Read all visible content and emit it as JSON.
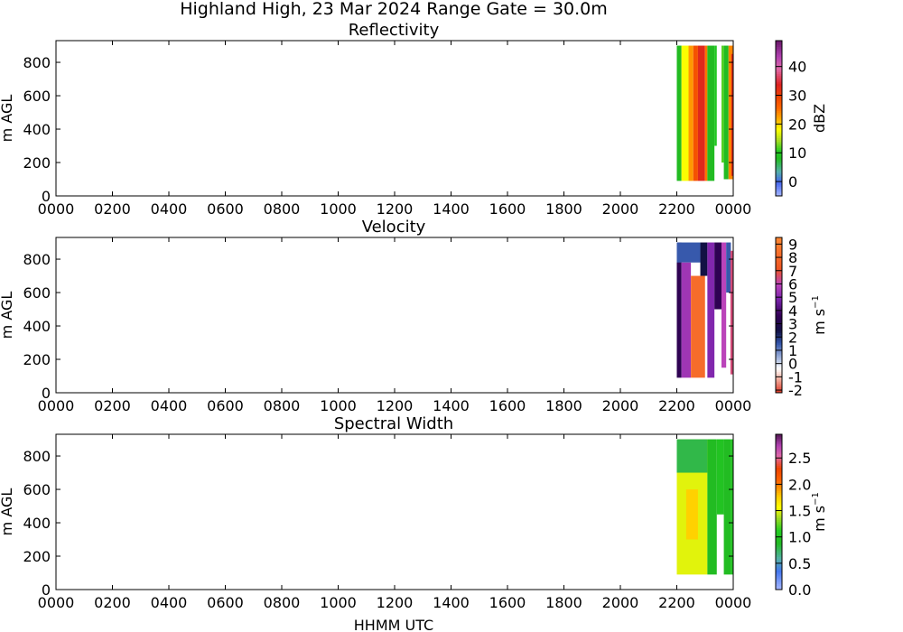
{
  "figure": {
    "title": "Highland High, 23 Mar 2024 Range Gate = 30.0m",
    "xlabel": "HHMM UTC"
  },
  "chart_data": [
    {
      "type": "heatmap",
      "title": "Reflectivity",
      "ylabel": "m AGL",
      "xlim": [
        "0000",
        "0000"
      ],
      "x_ticks": [
        "0000",
        "0200",
        "0400",
        "0600",
        "0800",
        "1000",
        "1200",
        "1400",
        "1600",
        "1800",
        "2000",
        "2200",
        "0000"
      ],
      "ylim": [
        0,
        930
      ],
      "y_ticks": [
        0,
        200,
        400,
        600,
        800
      ],
      "colorbar": {
        "label": "dBZ",
        "range": [
          -5,
          49
        ],
        "ticks": [
          "0",
          "10",
          "20",
          "30",
          "40"
        ],
        "tick_values": [
          0,
          10,
          20,
          30,
          40
        ]
      },
      "data_extent": {
        "x_start": "2200",
        "x_end": "2359",
        "height_min": 90,
        "height_max": 900
      },
      "bands": [
        {
          "x": [
            "2200",
            "2210"
          ],
          "h": [
            90,
            900
          ],
          "value": 8
        },
        {
          "x": [
            "2210",
            "2225"
          ],
          "h": [
            90,
            900
          ],
          "value": 18
        },
        {
          "x": [
            "2225",
            "2235"
          ],
          "h": [
            90,
            900
          ],
          "value": 23
        },
        {
          "x": [
            "2235",
            "2245"
          ],
          "h": [
            90,
            900
          ],
          "value": 28
        },
        {
          "x": [
            "2245",
            "2300"
          ],
          "h": [
            90,
            900
          ],
          "value": 33
        },
        {
          "x": [
            "2300",
            "2305"
          ],
          "h": [
            90,
            900
          ],
          "value": 25
        },
        {
          "x": [
            "2305",
            "2320"
          ],
          "h": [
            90,
            900
          ],
          "value": 8
        },
        {
          "x": [
            "2320",
            "2325"
          ],
          "h": [
            300,
            900
          ],
          "value": 10
        },
        {
          "x": [
            "2335",
            "2340"
          ],
          "h": [
            200,
            900
          ],
          "value": 12
        },
        {
          "x": [
            "2340",
            "2350"
          ],
          "h": [
            100,
            900
          ],
          "value": 8
        },
        {
          "x": [
            "2350",
            "2359"
          ],
          "h": [
            100,
            900
          ],
          "value": 24
        },
        {
          "x": [
            "2356",
            "2359"
          ],
          "h": [
            120,
            850
          ],
          "value": 33
        }
      ]
    },
    {
      "type": "heatmap",
      "title": "Velocity",
      "ylabel": "m AGL",
      "xlim": [
        "0000",
        "0000"
      ],
      "x_ticks": [
        "0000",
        "0200",
        "0400",
        "0600",
        "0800",
        "1000",
        "1200",
        "1400",
        "1600",
        "1800",
        "2000",
        "2200",
        "0000"
      ],
      "ylim": [
        0,
        930
      ],
      "y_ticks": [
        0,
        200,
        400,
        600,
        800
      ],
      "colorbar": {
        "label": "m s$^{-1}$",
        "label_main": "m s",
        "label_exp": "−1",
        "range": [
          -2.2,
          9.5
        ],
        "ticks": [
          "-2",
          "-1",
          "0",
          "1",
          "2",
          "3",
          "4",
          "5",
          "6",
          "7",
          "8",
          "9"
        ],
        "tick_values": [
          -2,
          -1,
          0,
          1,
          2,
          3,
          4,
          5,
          6,
          7,
          8,
          9
        ]
      },
      "data_extent": {
        "x_start": "2200",
        "x_end": "2359",
        "height_min": 90,
        "height_max": 900
      },
      "bands": [
        {
          "x": [
            "2200",
            "2210"
          ],
          "h": [
            90,
            900
          ],
          "value": 3.5
        },
        {
          "x": [
            "2200",
            "2250"
          ],
          "h": [
            780,
            900
          ],
          "value": 1.5
        },
        {
          "x": [
            "2210",
            "2230"
          ],
          "h": [
            90,
            780
          ],
          "value": 5.5
        },
        {
          "x": [
            "2230",
            "2300"
          ],
          "h": [
            90,
            700
          ],
          "value": 8.2
        },
        {
          "x": [
            "2250",
            "2305"
          ],
          "h": [
            700,
            900
          ],
          "value": 2.5
        },
        {
          "x": [
            "2305",
            "2320"
          ],
          "h": [
            90,
            900
          ],
          "value": 5.0
        },
        {
          "x": [
            "2320",
            "2335"
          ],
          "h": [
            500,
            900
          ],
          "value": 3.5
        },
        {
          "x": [
            "2335",
            "2345"
          ],
          "h": [
            150,
            900
          ],
          "value": 6.0
        },
        {
          "x": [
            "2345",
            "2355"
          ],
          "h": [
            600,
            900
          ],
          "value": 1.5
        },
        {
          "x": [
            "2354",
            "2359"
          ],
          "h": [
            110,
            850
          ],
          "value": 6.5
        }
      ]
    },
    {
      "type": "heatmap",
      "title": "Spectral Width",
      "ylabel": "m AGL",
      "xlim": [
        "0000",
        "0000"
      ],
      "x_ticks": [
        "0000",
        "0200",
        "0400",
        "0600",
        "0800",
        "1000",
        "1200",
        "1400",
        "1600",
        "1800",
        "2000",
        "2200",
        "0000"
      ],
      "ylim": [
        0,
        930
      ],
      "y_ticks": [
        0,
        200,
        400,
        600,
        800
      ],
      "colorbar": {
        "label": "m s$^{-1}$",
        "label_main": "m s",
        "label_exp": "−1",
        "range": [
          0,
          2.95
        ],
        "ticks": [
          "0.0",
          "0.5",
          "1.0",
          "1.5",
          "2.0",
          "2.5"
        ],
        "tick_values": [
          0,
          0.5,
          1.0,
          1.5,
          2.0,
          2.5
        ]
      },
      "data_extent": {
        "x_start": "2200",
        "x_end": "2359",
        "height_min": 90,
        "height_max": 900
      },
      "bands": [
        {
          "x": [
            "2200",
            "2305"
          ],
          "h": [
            90,
            900
          ],
          "value": 1.5
        },
        {
          "x": [
            "2200",
            "2305"
          ],
          "h": [
            700,
            900
          ],
          "value": 0.8
        },
        {
          "x": [
            "2220",
            "2245"
          ],
          "h": [
            300,
            600
          ],
          "value": 1.75
        },
        {
          "x": [
            "2305",
            "2325"
          ],
          "h": [
            90,
            900
          ],
          "value": 0.9
        },
        {
          "x": [
            "2325",
            "2340"
          ],
          "h": [
            450,
            900
          ],
          "value": 1.0
        },
        {
          "x": [
            "2340",
            "2355"
          ],
          "h": [
            90,
            900
          ],
          "value": 0.9
        },
        {
          "x": [
            "2355",
            "2359"
          ],
          "h": [
            90,
            900
          ],
          "value": 1.0
        }
      ]
    }
  ]
}
